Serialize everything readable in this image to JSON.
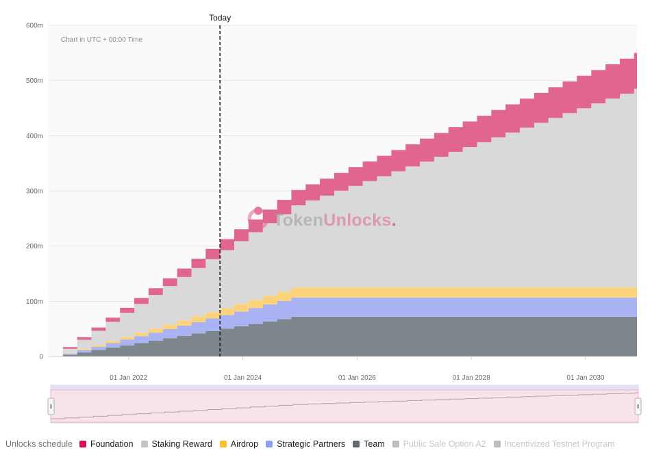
{
  "chart_data": {
    "type": "area",
    "stacked": true,
    "step": true,
    "note": "Chart in UTC + 00:00 Time",
    "today_label": "Today",
    "today_x": 2023.6,
    "watermark": "TokenUnlocks.",
    "watermark_parts": [
      "Token",
      "Unlocks",
      "."
    ],
    "xlim": [
      2020.6,
      2030.9
    ],
    "ylim": [
      0,
      600
    ],
    "y_ticks": [
      0,
      100,
      200,
      300,
      400,
      500,
      600
    ],
    "y_tick_labels": [
      "0",
      "100m",
      "200m",
      "300m",
      "400m",
      "500m",
      "600m"
    ],
    "x_ticks": [
      2022,
      2024,
      2026,
      2028,
      2030
    ],
    "x_tick_labels": [
      "01 Jan 2022",
      "01 Jan 2024",
      "01 Jan 2026",
      "01 Jan 2028",
      "01 Jan 2030"
    ],
    "grid": true,
    "series": [
      {
        "name": "Team",
        "color": "#7d868a",
        "start": 2020.85,
        "end": 2024.65,
        "begin": 3,
        "final": 72
      },
      {
        "name": "Strategic Partners",
        "color": "#aab3f4",
        "start": 2020.85,
        "end": 2024.65,
        "begin": 2,
        "final": 35
      },
      {
        "name": "Airdrop",
        "color": "#fcd37a",
        "start": 2020.85,
        "end": 2024.65,
        "begin": 1,
        "final": 18
      },
      {
        "name": "Staking Reward",
        "color": "#d9d9d9",
        "start": 2020.85,
        "end": 2030.8,
        "begin": 8,
        "final": 360
      },
      {
        "name": "Foundation",
        "color": "#e0668e",
        "start": 2020.85,
        "end": 2030.8,
        "begin": 3,
        "final": 65
      }
    ]
  },
  "legend": {
    "title": "Unlocks schedule",
    "items": [
      {
        "label": "Foundation",
        "color": "#d6114f",
        "active": true
      },
      {
        "label": "Staking Reward",
        "color": "#c4c4c4",
        "active": true
      },
      {
        "label": "Airdrop",
        "color": "#fbc02d",
        "active": true
      },
      {
        "label": "Strategic Partners",
        "color": "#8c9ef0",
        "active": true
      },
      {
        "label": "Team",
        "color": "#5f6a6e",
        "active": true
      },
      {
        "label": "Public Sale Option A2",
        "color": "#bdbdbd",
        "active": false
      },
      {
        "label": "Incentivized Testnet Program",
        "color": "#bdbdbd",
        "active": false
      }
    ]
  },
  "navigator": {
    "handle_glyph": "II"
  }
}
